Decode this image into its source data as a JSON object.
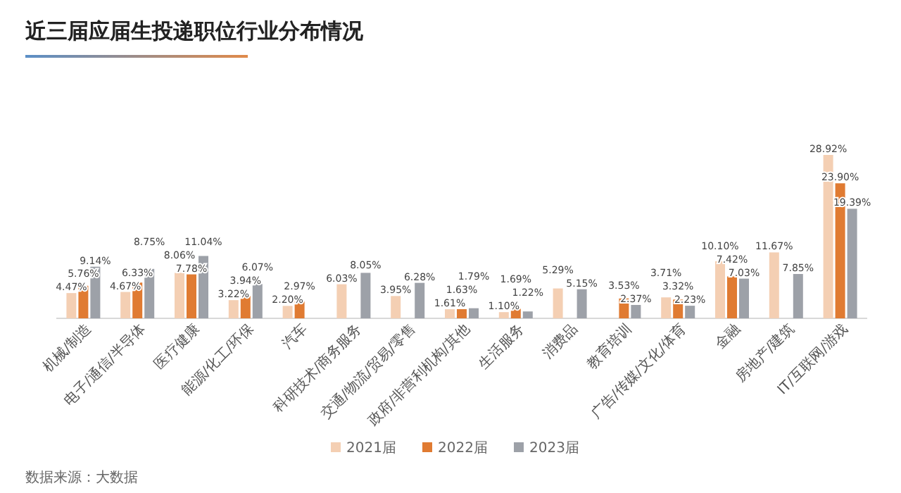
{
  "chart_data": {
    "type": "bar",
    "title": "近三届应届生投递职位行业分布情况",
    "categories": [
      "机械/制造",
      "电子/通信/半导体",
      "医疗健康",
      "能源/化工/环保",
      "汽车",
      "科研技术/商务服务",
      "交通/物流/贸易/零售",
      "政府/非营利机构/其他",
      "生活服务",
      "消费品",
      "教育培训",
      "广告/传媒/文化/体育",
      "金融",
      "房地产/建筑",
      "IT/互联网/游戏"
    ],
    "series": [
      {
        "name": "2021届",
        "color": "#f4cfb3",
        "values": [
          4.47,
          4.67,
          8.06,
          3.22,
          2.2,
          6.03,
          3.95,
          1.61,
          1.1,
          5.29,
          null,
          3.71,
          10.1,
          11.67,
          28.92
        ],
        "value_labels": [
          "4.47%",
          "4.67%",
          "8.06%",
          "3.22%",
          "2.20%",
          "6.03%",
          "3.95%",
          "1.61%",
          "1.10%",
          "5.29%",
          null,
          "3.71%",
          "10.10%",
          "11.67%",
          "28.92%"
        ]
      },
      {
        "name": "2022届",
        "color": "#e07b32",
        "values": [
          5.76,
          6.33,
          7.78,
          3.94,
          2.97,
          null,
          null,
          1.63,
          1.69,
          null,
          3.53,
          3.32,
          7.42,
          null,
          23.9
        ],
        "value_labels": [
          "5.76%",
          "6.33%",
          "7.78%",
          "3.94%",
          "2.97%",
          null,
          null,
          "1.63%",
          "1.69%",
          null,
          "3.53%",
          "3.32%",
          "7.42%",
          null,
          "23.90%"
        ]
      },
      {
        "name": "2023届",
        "color": "#9da1a8",
        "values": [
          9.14,
          8.75,
          11.04,
          6.07,
          null,
          8.05,
          6.28,
          1.79,
          1.22,
          5.15,
          2.37,
          2.23,
          7.03,
          7.85,
          19.39
        ],
        "value_labels": [
          "9.14%",
          "8.75%",
          "11.04%",
          "6.07%",
          null,
          "8.05%",
          "6.28%",
          "1.79%",
          "1.22%",
          "5.15%",
          "2.37%",
          "2.23%",
          "7.03%",
          "7.85%",
          "19.39%"
        ]
      }
    ],
    "legend": "bottom",
    "annotations": [
      "数据来源：大数据"
    ]
  }
}
